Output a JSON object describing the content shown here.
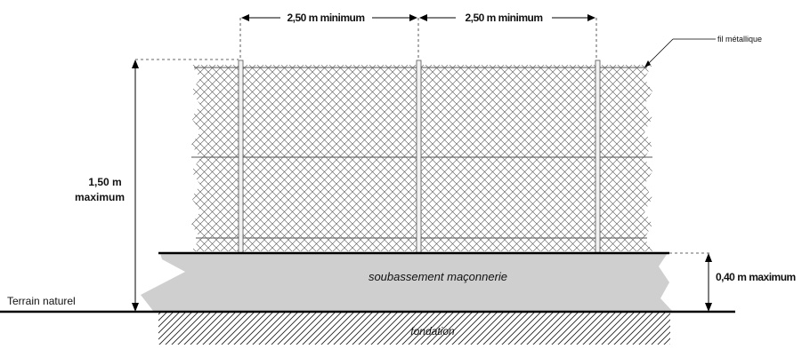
{
  "labels": {
    "spacing_left": "2,50 m minimum",
    "spacing_right": "2,50 m minimum",
    "wire": "fil métallique",
    "height_line1": "1,50 m",
    "height_line2": "maximum",
    "base_height": "0,40 m maximum",
    "ground": "Terrain naturel",
    "base": "soubassement maçonnerie",
    "foundation": "fondation"
  },
  "colors": {
    "mesh": "#555555",
    "base_fill": "#cfcfcf",
    "line": "#000000"
  }
}
